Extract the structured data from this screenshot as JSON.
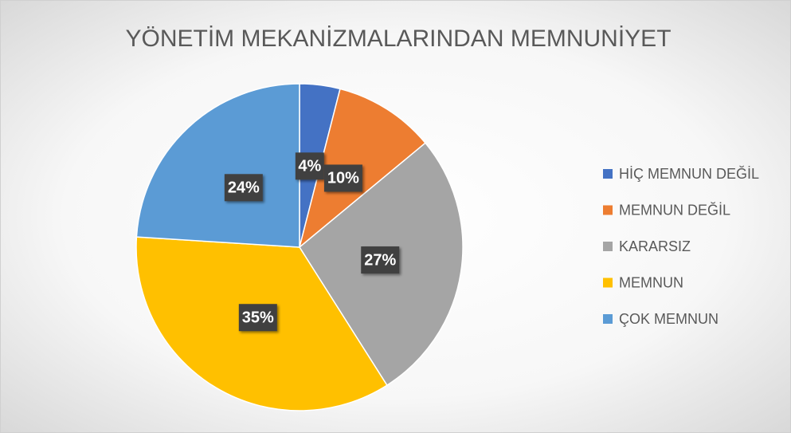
{
  "chart_data": {
    "type": "pie",
    "title": "YÖNETİM MEKANİZMALARINDAN MEMNUNİYET",
    "categories": [
      "HİÇ MEMNUN DEĞİL",
      "MEMNUN DEĞİL",
      "KARARSIZ",
      "MEMNUN",
      "ÇOK MEMNUN"
    ],
    "values": [
      4,
      10,
      27,
      35,
      24
    ],
    "value_labels": [
      "4%",
      "10%",
      "27%",
      "35%",
      "24%"
    ],
    "colors": [
      "#4472c4",
      "#ed7d31",
      "#a5a5a5",
      "#ffc000",
      "#5b9bd5"
    ],
    "legend": "right"
  }
}
